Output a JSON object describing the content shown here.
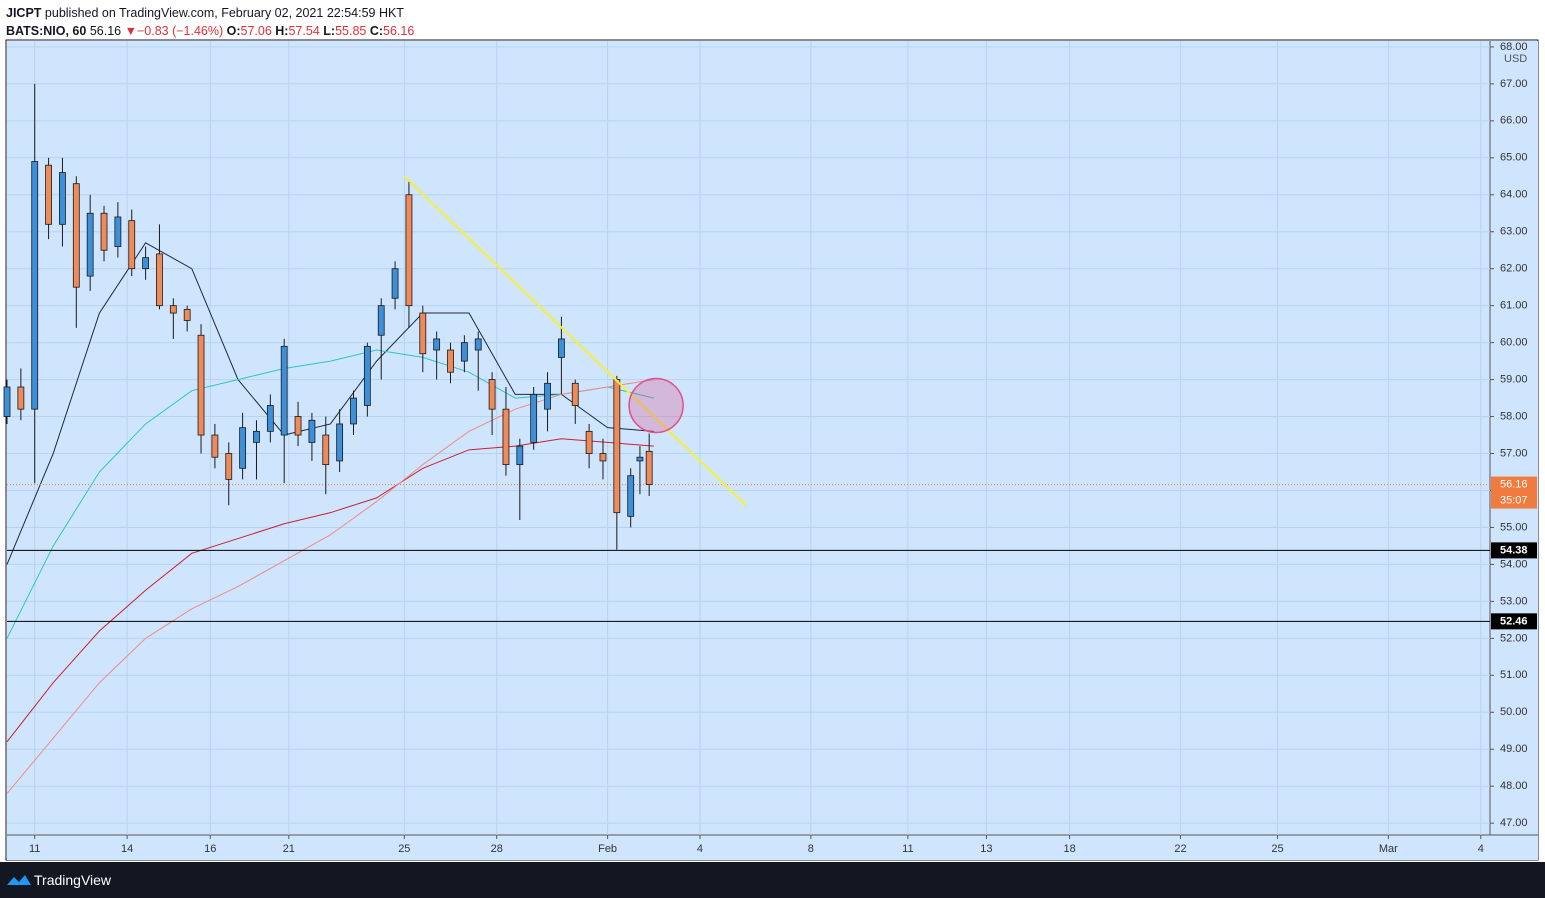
{
  "header": {
    "author": "JICPT",
    "published": "published on TradingView.com, February 02, 2021 22:54:59 HKT",
    "symbol": "BATS:NIO, 60",
    "last": "56.16",
    "arrow": "▼",
    "change": "−0.83 (−1.46%)",
    "o_label": "O:",
    "o": "57.06",
    "h_label": "H:",
    "h": "57.54",
    "l_label": "L:",
    "l": "55.85",
    "c_label": "C:",
    "c": "56.16"
  },
  "footer": {
    "brand": "TradingView"
  },
  "chart_data": {
    "type": "candlestick",
    "currency": "USD",
    "up_color": "#3d8fd9",
    "down_color": "#ef8a5a",
    "background": "#cfe5fd",
    "grid": true,
    "xlim": [
      0,
      321
    ],
    "ylim": [
      46.68,
      68.16
    ],
    "xticks": [
      {
        "value": 6,
        "label": "11"
      },
      {
        "value": 26,
        "label": "14"
      },
      {
        "value": 44,
        "label": "16"
      },
      {
        "value": 61,
        "label": "21"
      },
      {
        "value": 86,
        "label": "25"
      },
      {
        "value": 106,
        "label": "28"
      },
      {
        "value": 130,
        "label": "Feb"
      },
      {
        "value": 150,
        "label": "4"
      },
      {
        "value": 174,
        "label": "8"
      },
      {
        "value": 195,
        "label": "11"
      },
      {
        "value": 212,
        "label": "13"
      },
      {
        "value": 230,
        "label": "18"
      },
      {
        "value": 254,
        "label": "22"
      },
      {
        "value": 275,
        "label": "25"
      },
      {
        "value": 299,
        "label": "Mar"
      },
      {
        "value": 319,
        "label": "4"
      }
    ],
    "yticks": [
      {
        "value": 47,
        "label": "47.00"
      },
      {
        "value": 48,
        "label": "48.00"
      },
      {
        "value": 49,
        "label": "49.00"
      },
      {
        "value": 50,
        "label": "50.00"
      },
      {
        "value": 51,
        "label": "51.00"
      },
      {
        "value": 52,
        "label": "52.00"
      },
      {
        "value": 53,
        "label": "53.00"
      },
      {
        "value": 54,
        "label": "54.00"
      },
      {
        "value": 55,
        "label": "55.00"
      },
      {
        "value": 56,
        "label": "56.00"
      },
      {
        "value": 57,
        "label": "57.00"
      },
      {
        "value": 58,
        "label": "58.00"
      },
      {
        "value": 59,
        "label": "59.00"
      },
      {
        "value": 60,
        "label": "60.00"
      },
      {
        "value": 61,
        "label": "61.00"
      },
      {
        "value": 62,
        "label": "62.00"
      },
      {
        "value": 63,
        "label": "63.00"
      },
      {
        "value": 64,
        "label": "64.00"
      },
      {
        "value": 65,
        "label": "65.00"
      },
      {
        "value": 66,
        "label": "66.00"
      },
      {
        "value": 67,
        "label": "67.00"
      },
      {
        "value": 68,
        "label": "68.00"
      }
    ],
    "candles": {
      "x": [
        0,
        3,
        6,
        9,
        12,
        15,
        18,
        21,
        24,
        27,
        30,
        33,
        36,
        39,
        42,
        45,
        48,
        51,
        54,
        57,
        60,
        63,
        66,
        69,
        72,
        75,
        78,
        81,
        84,
        87,
        90,
        93,
        96,
        99,
        102,
        105,
        108,
        111,
        114,
        117,
        120,
        123,
        126,
        129,
        132,
        135,
        137,
        139
      ],
      "open": [
        58.0,
        58.8,
        58.2,
        64.8,
        63.2,
        64.3,
        61.8,
        63.5,
        62.6,
        63.3,
        62.0,
        62.4,
        61.0,
        60.9,
        60.2,
        57.5,
        57.0,
        56.6,
        57.3,
        57.6,
        57.5,
        58.0,
        57.3,
        57.5,
        56.8,
        57.8,
        58.3,
        60.2,
        61.2,
        64.0,
        60.8,
        59.8,
        59.8,
        59.5,
        59.8,
        59.0,
        58.2,
        56.7,
        57.3,
        58.2,
        59.6,
        58.9,
        57.6,
        57.0,
        59.0,
        55.3,
        56.8,
        57.06
      ],
      "high": [
        59.0,
        59.3,
        67.0,
        65.0,
        65.0,
        64.5,
        64.0,
        63.7,
        63.8,
        63.6,
        62.6,
        63.2,
        61.2,
        61.0,
        60.5,
        57.8,
        57.3,
        58.1,
        57.9,
        58.6,
        60.1,
        58.4,
        58.1,
        58.0,
        58.2,
        58.7,
        60.0,
        61.2,
        62.2,
        64.4,
        61.0,
        60.3,
        60.0,
        60.2,
        60.3,
        59.2,
        58.8,
        57.4,
        58.8,
        59.2,
        60.7,
        59.0,
        57.8,
        57.4,
        59.1,
        56.6,
        57.2,
        57.54
      ],
      "low": [
        57.8,
        57.9,
        56.2,
        62.8,
        62.6,
        60.4,
        61.4,
        62.2,
        62.3,
        61.8,
        61.7,
        60.9,
        60.1,
        60.3,
        57.0,
        56.6,
        55.6,
        56.3,
        56.3,
        57.3,
        56.2,
        57.2,
        56.8,
        55.9,
        56.5,
        57.5,
        58.0,
        59.0,
        60.9,
        60.4,
        59.2,
        59.0,
        58.9,
        59.2,
        58.7,
        57.5,
        56.4,
        55.2,
        57.1,
        57.6,
        58.6,
        57.8,
        56.6,
        56.3,
        54.4,
        55.0,
        55.9,
        55.85
      ],
      "close": [
        58.8,
        58.2,
        64.9,
        63.2,
        64.6,
        61.5,
        63.5,
        62.5,
        63.4,
        62.0,
        62.3,
        61.0,
        60.8,
        60.6,
        57.5,
        56.9,
        56.3,
        57.7,
        57.6,
        58.3,
        59.9,
        57.5,
        57.9,
        56.7,
        57.8,
        58.5,
        59.9,
        61.0,
        62.0,
        61.0,
        59.7,
        60.1,
        59.2,
        60.0,
        60.1,
        58.2,
        56.7,
        57.2,
        58.6,
        58.9,
        60.1,
        58.3,
        57.0,
        56.8,
        55.4,
        56.4,
        56.9,
        56.16
      ]
    },
    "lines": [
      {
        "color": "#1e2a3a",
        "x": [
          0,
          10,
          20,
          30,
          40,
          50,
          60,
          70,
          80,
          90,
          100,
          110,
          120,
          130,
          140
        ],
        "values": [
          54.0,
          57.0,
          60.8,
          62.7,
          62.0,
          59.0,
          57.5,
          57.8,
          59.5,
          60.8,
          60.8,
          58.6,
          58.6,
          57.7,
          57.6
        ]
      },
      {
        "color": "#2ec4c4",
        "x": [
          0,
          10,
          20,
          30,
          40,
          50,
          60,
          70,
          80,
          90,
          100,
          110,
          120,
          130,
          140
        ],
        "values": [
          52.0,
          54.5,
          56.5,
          57.8,
          58.7,
          59.0,
          59.3,
          59.5,
          59.8,
          59.6,
          59.2,
          58.5,
          58.6,
          58.8,
          58.5
        ]
      },
      {
        "color": "#c8202e",
        "x": [
          0,
          10,
          20,
          30,
          40,
          50,
          60,
          70,
          80,
          90,
          100,
          110,
          120,
          130,
          140
        ],
        "values": [
          49.2,
          50.8,
          52.2,
          53.3,
          54.3,
          54.7,
          55.1,
          55.4,
          55.8,
          56.6,
          57.1,
          57.2,
          57.4,
          57.3,
          57.2
        ]
      },
      {
        "color": "#f08a8a",
        "x": [
          0,
          10,
          20,
          30,
          40,
          50,
          60,
          70,
          80,
          90,
          100,
          110,
          120,
          130,
          140
        ],
        "values": [
          47.8,
          49.3,
          50.8,
          52.0,
          52.8,
          53.4,
          54.1,
          54.8,
          55.7,
          56.7,
          57.6,
          58.2,
          58.6,
          58.8,
          59.0
        ]
      }
    ],
    "trendline": {
      "color": "#f5f03a",
      "x": [
        86,
        160
      ],
      "values": [
        64.5,
        55.6
      ]
    },
    "circle": {
      "color": "#e0508a",
      "x": 140.5,
      "y": 58.3
    },
    "levels": [
      {
        "value": 54.38,
        "label": "54.38"
      },
      {
        "value": 52.46,
        "label": "52.46"
      }
    ],
    "price": {
      "value": 56.16,
      "label": "56.16",
      "countdown": "35:07",
      "color": "#f07b3f"
    }
  }
}
